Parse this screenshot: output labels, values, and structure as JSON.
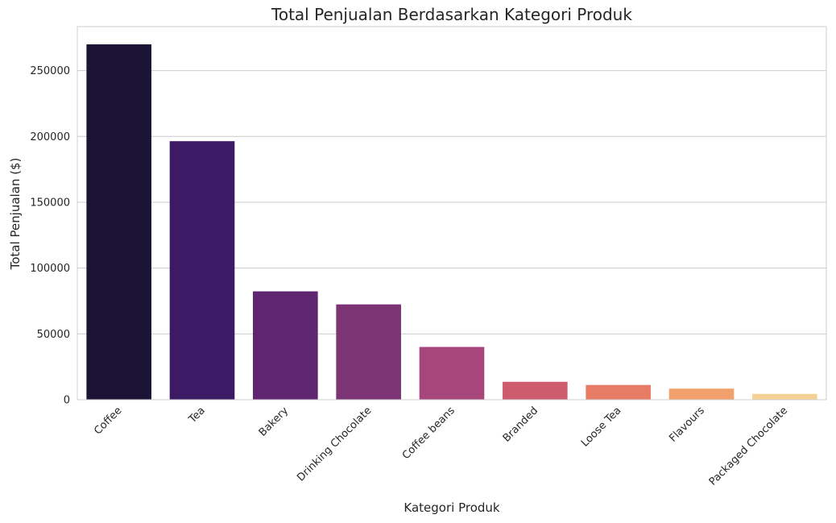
{
  "chart_data": {
    "type": "bar",
    "title": "Total Penjualan Berdasarkan Kategori Produk",
    "xlabel": "Kategori Produk",
    "ylabel": "Total Penjualan ($)",
    "categories": [
      "Coffee",
      "Tea",
      "Bakery",
      "Drinking Chocolate",
      "Coffee beans",
      "Branded",
      "Loose Tea",
      "Flavours",
      "Packaged Chocolate"
    ],
    "values": [
      269952,
      196406,
      82316,
      72416,
      40085,
      13607,
      11213,
      8408,
      4408
    ],
    "colors": [
      "#1b1436",
      "#3d1a66",
      "#5f2570",
      "#7d3475",
      "#a6467b",
      "#cf5b6f",
      "#e77b63",
      "#f2a16c",
      "#f6cf92"
    ],
    "yticks": [
      0,
      50000,
      100000,
      150000,
      200000,
      250000
    ],
    "ylim": [
      0,
      283450
    ],
    "grid": "horizontal",
    "legend": "none"
  }
}
